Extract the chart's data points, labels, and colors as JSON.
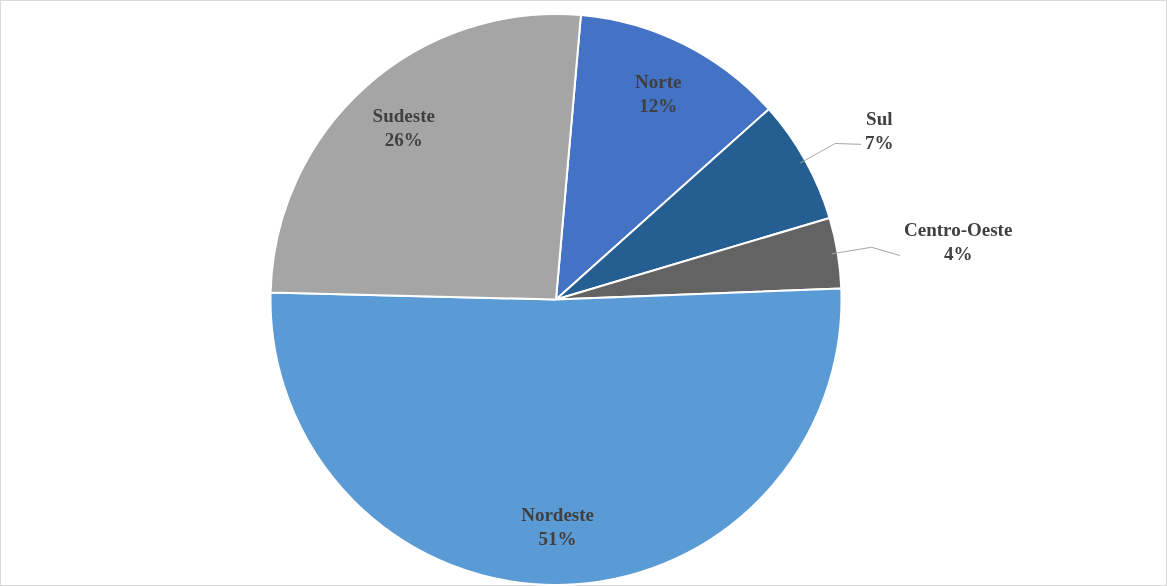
{
  "chart_data": {
    "type": "pie",
    "categories": [
      "Norte",
      "Sul",
      "Centro-Oeste",
      "Nordeste",
      "Sudeste"
    ],
    "values": [
      12,
      7,
      4,
      51,
      26
    ],
    "value_labels": [
      "12%",
      "7%",
      "4%",
      "51%",
      "26%"
    ],
    "colors": [
      "#4472c4",
      "#255e91",
      "#636363",
      "#5b9bd5",
      "#a5a5a5"
    ],
    "legend": false
  }
}
